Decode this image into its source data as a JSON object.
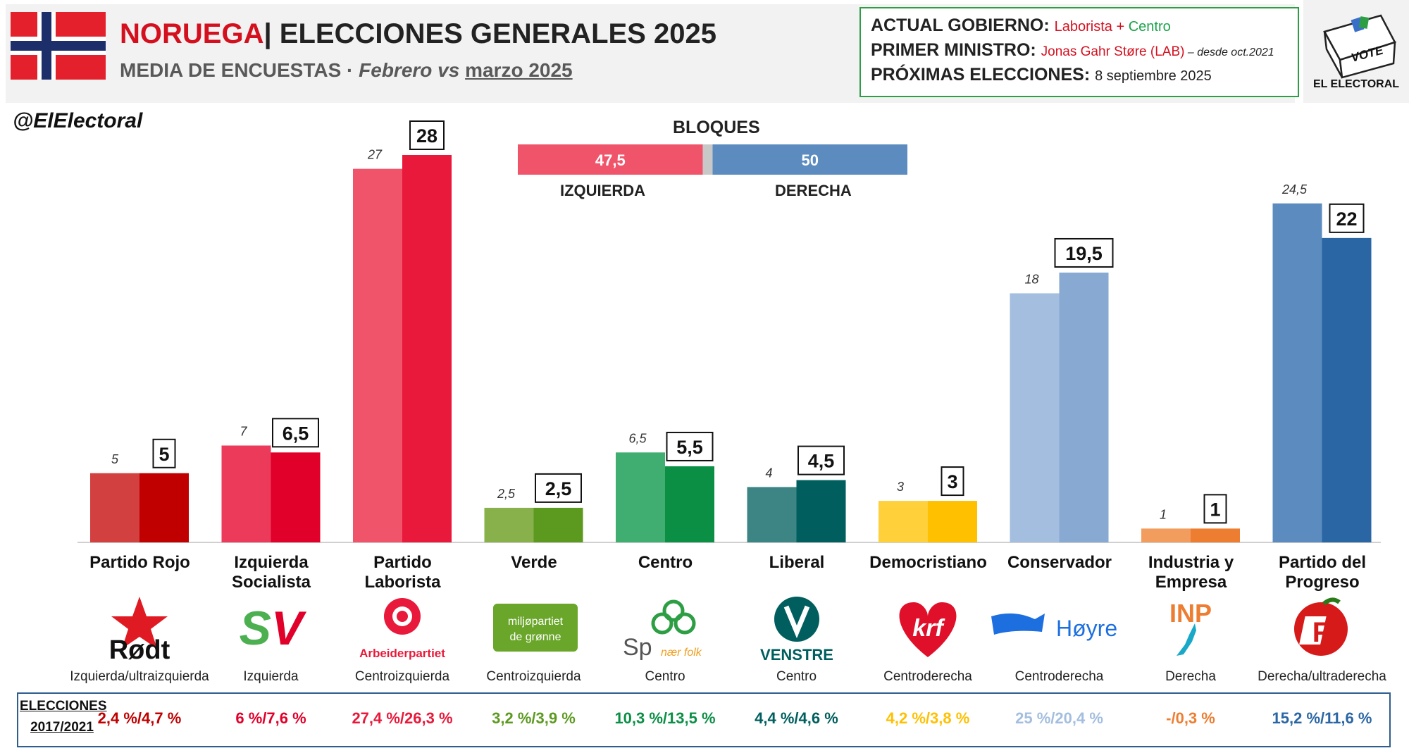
{
  "header": {
    "country": "NORUEGA",
    "separator": "|",
    "title": "ELECCIONES GENERALES 2025",
    "subtitle_main": "MEDIA DE ENCUESTAS",
    "subtitle_dot": " · ",
    "subtitle_feb": "Febrero vs",
    "subtitle_mar": "marzo 2025"
  },
  "government": {
    "gov_label": "ACTUAL GOBIERNO:",
    "gov_party1": "Laborista",
    "gov_plus": " + ",
    "gov_party2": "Centro",
    "pm_label": "PRIMER MINISTRO:",
    "pm_name": "Jonas Gahr Støre (LAB)",
    "pm_since": " – desde oct.2021",
    "next_label": "PRÓXIMAS ELECCIONES:",
    "next_date": "8 septiembre 2025"
  },
  "logo": {
    "vote": "VOTE",
    "brand": "EL ELECTORAL"
  },
  "handle": "@ElElectoral",
  "blocs": {
    "title": "BLOQUES",
    "left": {
      "label": "IZQUIERDA",
      "value": 47.5,
      "value_label": "47,5",
      "color": "#f0546a"
    },
    "right": {
      "label": "DERECHA",
      "value": 50,
      "value_label": "50",
      "color": "#5b8bbf"
    },
    "gap_color": "#c8c8c8"
  },
  "chart_data": {
    "type": "bar",
    "series": [
      {
        "name": "Febrero",
        "values": [
          5,
          7,
          27,
          2.5,
          6.5,
          4,
          3,
          18,
          1,
          24.5
        ]
      },
      {
        "name": "Marzo",
        "values": [
          5,
          6.5,
          28,
          2.5,
          5.5,
          4.5,
          3,
          19.5,
          1,
          22
        ]
      }
    ],
    "categories": [
      "Partido Rojo",
      "Izquierda Socialista",
      "Partido Laborista",
      "Verde",
      "Centro",
      "Liberal",
      "Democristiano",
      "Conservador",
      "Industria y Empresa",
      "Partido del Progreso"
    ],
    "feb_labels": [
      "5",
      "7",
      "27",
      "2,5",
      "6,5",
      "4",
      "3",
      "18",
      "1",
      "24,5"
    ],
    "mar_labels": [
      "5",
      "6,5",
      "28",
      "2,5",
      "5,5",
      "4,5",
      "3",
      "19,5",
      "1",
      "22"
    ],
    "ylim": [
      0,
      28
    ],
    "grid": false
  },
  "parties": [
    {
      "line1": "Partido Rojo",
      "line2": "",
      "ideology": "Izquierda/ultraizquierda",
      "logo_text": "Rødt",
      "past": "2,4 %/4,7 %",
      "feb_color": "#d24040",
      "mar_color": "#c00000",
      "text_color": "#c00000"
    },
    {
      "line1": "Izquierda",
      "line2": "Socialista",
      "ideology": "Izquierda",
      "logo_text": "SV",
      "past": "6 %/7,6 %",
      "feb_color": "#ec3a5a",
      "mar_color": "#e0002a",
      "text_color": "#e0002a"
    },
    {
      "line1": "Partido",
      "line2": "Laborista",
      "ideology": "Centroizquierda",
      "logo_text": "Arbeiderpartiet",
      "past": "27,4 %/26,3 %",
      "feb_color": "#f0546a",
      "mar_color": "#e8193a",
      "text_color": "#e8193a"
    },
    {
      "line1": "Verde",
      "line2": "",
      "ideology": "Centroizquierda",
      "logo_text": "miljøpartiet de grønne",
      "past": "3,2 %/3,9 %",
      "feb_color": "#88b04b",
      "mar_color": "#5c9a1f",
      "text_color": "#5c9a1f"
    },
    {
      "line1": "Centro",
      "line2": "",
      "ideology": "Centro",
      "logo_text": "Sp",
      "logo_sub": "nær folk",
      "past": "10,3 %/13,5 %",
      "feb_color": "#3fae70",
      "mar_color": "#0a8f45",
      "text_color": "#0a8f45"
    },
    {
      "line1": "Liberal",
      "line2": "",
      "ideology": "Centro",
      "logo_text": "VENSTRE",
      "past": "4,4 %/4,6 %",
      "feb_color": "#3d8585",
      "mar_color": "#005e5e",
      "text_color": "#005e5e"
    },
    {
      "line1": "Democristiano",
      "line2": "",
      "ideology": "Centroderecha",
      "logo_text": "krf",
      "past": "4,2 %/3,8 %",
      "feb_color": "#ffd03a",
      "mar_color": "#ffc000",
      "text_color": "#ffc000"
    },
    {
      "line1": "Conservador",
      "line2": "",
      "ideology": "Centroderecha",
      "logo_text": "Høyre",
      "past": "25 %/20,4 %",
      "feb_color": "#a3bedf",
      "mar_color": "#88aad2",
      "text_color": "#a3bedf"
    },
    {
      "line1": "Industria y",
      "line2": "Empresa",
      "ideology": "Derecha",
      "logo_text": "INP",
      "past": "-/0,3 %",
      "feb_color": "#f29d5d",
      "mar_color": "#ed7d31",
      "text_color": "#ed7d31"
    },
    {
      "line1": "Partido del",
      "line2": "Progreso",
      "ideology": "Derecha/ultraderecha",
      "logo_text": "F",
      "past": "15,2 %/11,6 %",
      "feb_color": "#5b8bbf",
      "mar_color": "#2a66a3",
      "text_color": "#2a66a3"
    }
  ],
  "elections": {
    "label_line1": "ELECCIONES",
    "label_line2": "2017/2021"
  }
}
